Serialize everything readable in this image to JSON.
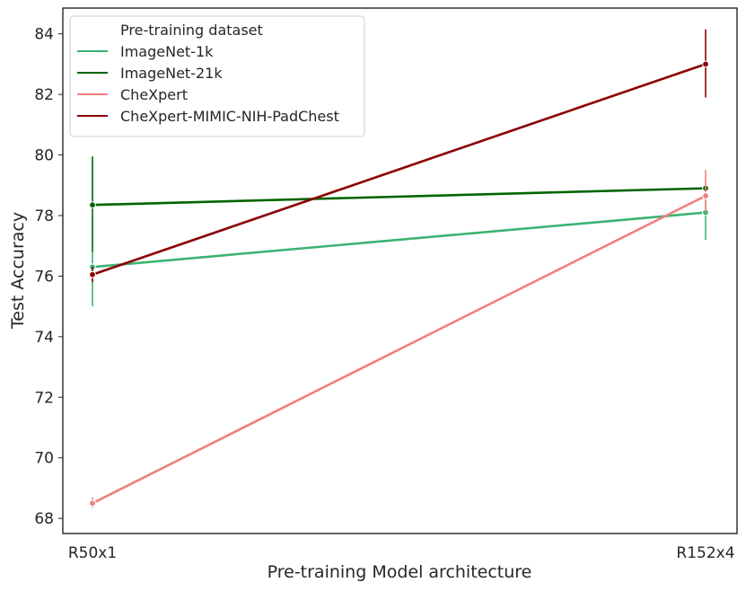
{
  "chart_data": {
    "type": "line",
    "categories": [
      "R50x1",
      "R152x4"
    ],
    "xlabel": "Pre-training Model architecture",
    "ylabel": "Test Accuracy",
    "ylim": [
      67.5,
      84.85
    ],
    "yticks": [
      68,
      70,
      72,
      74,
      76,
      78,
      80,
      82,
      84
    ],
    "grid": false,
    "legend": {
      "title": "Pre-training dataset",
      "placement": "top-left"
    },
    "series": [
      {
        "name": "ImageNet-1k",
        "color": "#3cb371",
        "values": [
          76.3,
          78.1
        ],
        "error_low": [
          75.0,
          77.2
        ],
        "error_high": [
          76.8,
          78.6
        ]
      },
      {
        "name": "ImageNet-21k",
        "color": "#006400",
        "values": [
          78.35,
          78.9
        ],
        "error_low": [
          76.8,
          78.8
        ],
        "error_high": [
          79.95,
          79.0
        ]
      },
      {
        "name": "CheXpert",
        "color": "#f08080",
        "values": [
          68.5,
          78.65
        ],
        "error_low": [
          68.35,
          78.1
        ],
        "error_high": [
          68.7,
          79.5
        ]
      },
      {
        "name": "CheXpert-MIMIC-NIH-PadChest",
        "color": "#8b0000",
        "values": [
          76.05,
          83.0
        ],
        "error_low": [
          75.8,
          81.9
        ],
        "error_high": [
          76.3,
          84.15
        ]
      }
    ]
  }
}
